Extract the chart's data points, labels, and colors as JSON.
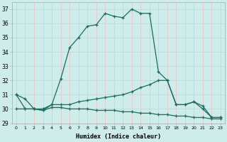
{
  "xlabel": "Humidex (Indice chaleur)",
  "xlim": [
    -0.5,
    23.5
  ],
  "ylim": [
    29,
    37.5
  ],
  "yticks": [
    29,
    30,
    31,
    32,
    33,
    34,
    35,
    36,
    37
  ],
  "xticks": [
    0,
    1,
    2,
    3,
    4,
    5,
    6,
    7,
    8,
    9,
    10,
    11,
    12,
    13,
    14,
    15,
    16,
    17,
    18,
    19,
    20,
    21,
    22,
    23
  ],
  "background_color": "#ceecea",
  "grid_color": "#e8c8c8",
  "line_color": "#1a6b60",
  "line1_x": [
    0,
    1,
    2,
    3,
    4,
    5,
    6,
    7,
    8,
    9,
    10,
    11,
    12,
    13,
    14,
    15,
    16,
    17,
    18,
    19,
    20,
    21,
    22,
    23
  ],
  "line1_y": [
    31.0,
    30.7,
    30.0,
    30.0,
    30.3,
    32.1,
    34.3,
    35.0,
    35.8,
    35.9,
    36.7,
    36.5,
    36.4,
    37.0,
    36.7,
    36.7,
    32.6,
    32.0,
    30.3,
    30.3,
    30.5,
    30.0,
    29.4,
    29.4
  ],
  "line2_x": [
    0,
    1,
    2,
    3,
    4,
    5,
    6,
    7,
    8,
    9,
    10,
    11,
    12,
    13,
    14,
    15,
    16,
    17,
    18,
    19,
    20,
    21,
    22,
    23
  ],
  "line2_y": [
    30.0,
    30.0,
    30.0,
    29.9,
    30.3,
    30.3,
    30.3,
    30.5,
    30.6,
    30.7,
    30.8,
    30.9,
    31.0,
    31.2,
    31.5,
    31.7,
    32.0,
    32.0,
    30.3,
    30.3,
    30.5,
    30.2,
    29.4,
    29.4
  ],
  "line3_x": [
    0,
    1,
    2,
    3,
    4,
    5,
    6,
    7,
    8,
    9,
    10,
    11,
    12,
    13,
    14,
    15,
    16,
    17,
    18,
    19,
    20,
    21,
    22,
    23
  ],
  "line3_y": [
    31.0,
    30.0,
    30.0,
    29.9,
    30.1,
    30.1,
    30.0,
    30.0,
    30.0,
    29.9,
    29.9,
    29.9,
    29.8,
    29.8,
    29.7,
    29.7,
    29.6,
    29.6,
    29.5,
    29.5,
    29.4,
    29.4,
    29.3,
    29.3
  ]
}
